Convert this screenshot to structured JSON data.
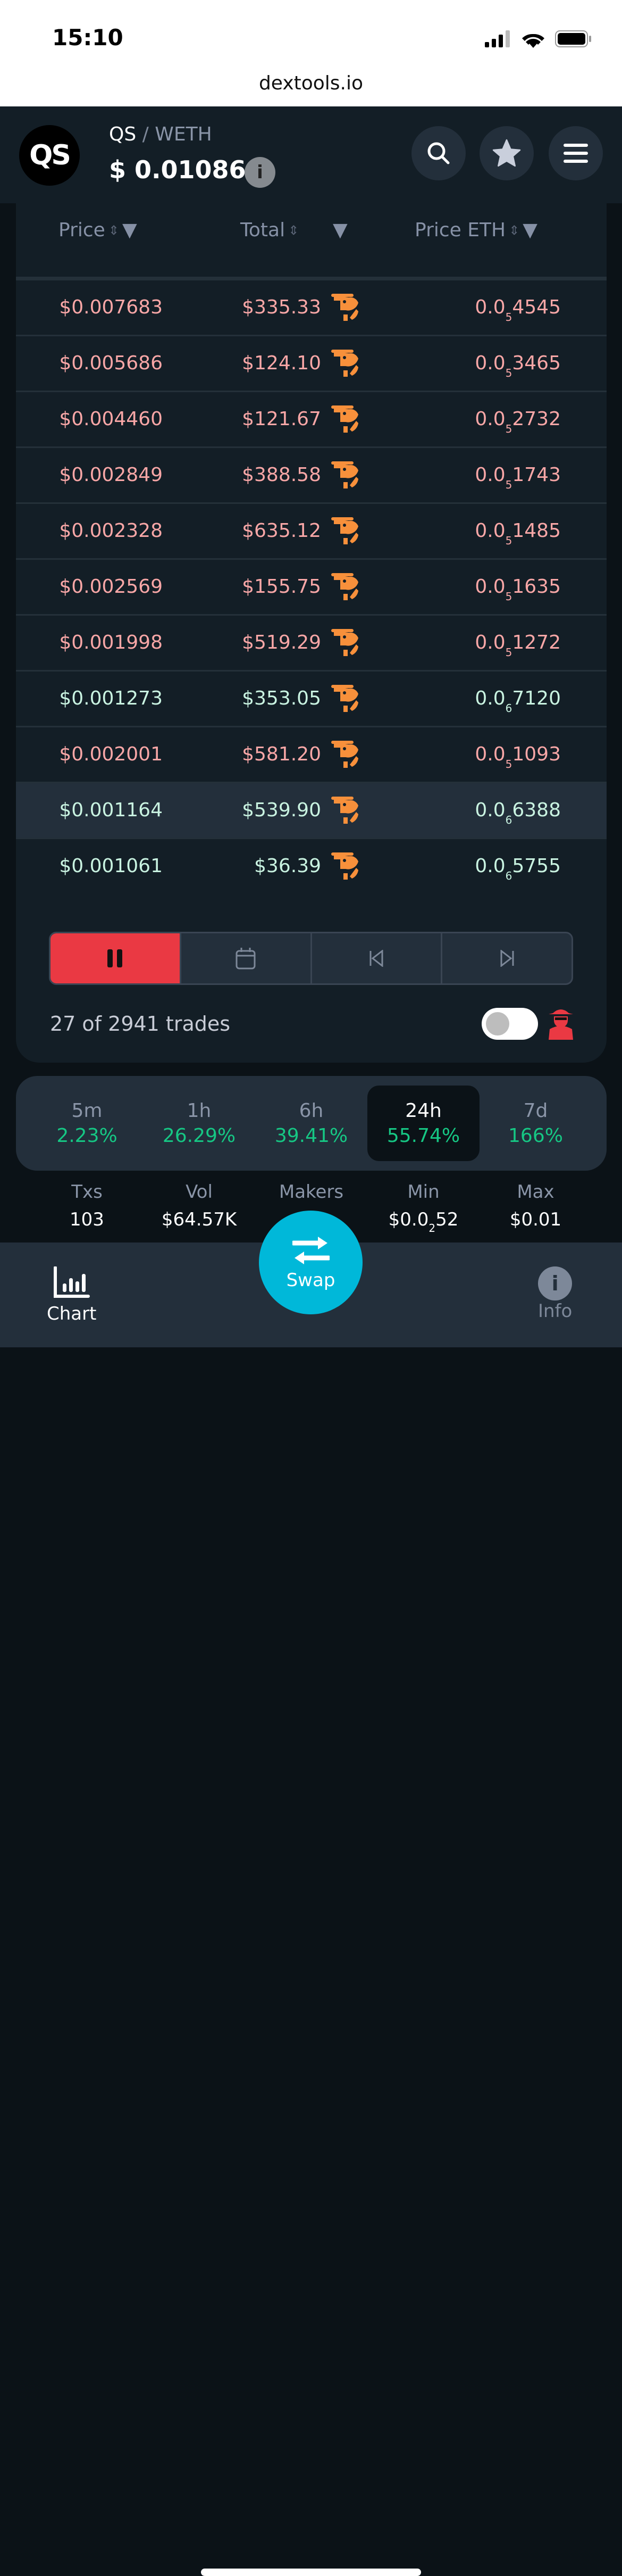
{
  "status_bar": {
    "time": "15:10",
    "url": "dextools.io"
  },
  "header": {
    "logo_text": "QS",
    "base": "QS",
    "separator": "/",
    "quote": "WETH",
    "price": "$ 0.01086",
    "info_label": "i"
  },
  "table": {
    "columns": {
      "price": "Price",
      "total": "Total",
      "price_eth": "Price ETH"
    },
    "rows": [
      {
        "price": "$0.007683",
        "total": "$335.33",
        "eth": {
          "pre": "0.0",
          "sub": "5",
          "digits": "4545"
        },
        "side": "sell",
        "maker": "shrimp"
      },
      {
        "price": "$0.005686",
        "total": "$124.10",
        "eth": {
          "pre": "0.0",
          "sub": "5",
          "digits": "3465"
        },
        "side": "sell",
        "maker": "shrimp"
      },
      {
        "price": "$0.004460",
        "total": "$121.67",
        "eth": {
          "pre": "0.0",
          "sub": "5",
          "digits": "2732"
        },
        "side": "sell",
        "maker": "shrimp"
      },
      {
        "price": "$0.002849",
        "total": "$388.58",
        "eth": {
          "pre": "0.0",
          "sub": "5",
          "digits": "1743"
        },
        "side": "sell",
        "maker": "shrimp"
      },
      {
        "price": "$0.002328",
        "total": "$635.12",
        "eth": {
          "pre": "0.0",
          "sub": "5",
          "digits": "1485"
        },
        "side": "sell",
        "maker": "shrimp"
      },
      {
        "price": "$0.002569",
        "total": "$155.75",
        "eth": {
          "pre": "0.0",
          "sub": "5",
          "digits": "1635"
        },
        "side": "sell",
        "maker": "shrimp"
      },
      {
        "price": "$0.001998",
        "total": "$519.29",
        "eth": {
          "pre": "0.0",
          "sub": "5",
          "digits": "1272"
        },
        "side": "sell",
        "maker": "shrimp"
      },
      {
        "price": "$0.001273",
        "total": "$353.05",
        "eth": {
          "pre": "0.0",
          "sub": "6",
          "digits": "7120"
        },
        "side": "buy",
        "maker": "shrimp"
      },
      {
        "price": "$0.002001",
        "total": "$581.20",
        "eth": {
          "pre": "0.0",
          "sub": "5",
          "digits": "1093"
        },
        "side": "sell",
        "maker": "shrimp"
      },
      {
        "price": "$0.001164",
        "total": "$539.90",
        "eth": {
          "pre": "0.0",
          "sub": "6",
          "digits": "6388"
        },
        "side": "buy",
        "maker": "shrimp",
        "highlighted": true
      },
      {
        "price": "$0.001061",
        "total": "$36.39",
        "eth": {
          "pre": "0.0",
          "sub": "6",
          "digits": "5755"
        },
        "side": "buy",
        "maker": "shrimp"
      }
    ]
  },
  "colors": {
    "sell": "#f9a7a7",
    "buy": "#c9f3e1",
    "accent": "#00b8d9",
    "pause": "#ea3943",
    "positive": "#16c784",
    "shrimp": "#f7903b"
  },
  "trades_summary": "27 of 2941 trades",
  "timeframes": [
    {
      "label": "5m",
      "change": "2.23%"
    },
    {
      "label": "1h",
      "change": "26.29%"
    },
    {
      "label": "6h",
      "change": "39.41%"
    },
    {
      "label": "24h",
      "change": "55.74%",
      "active": true
    },
    {
      "label": "7d",
      "change": "166%"
    }
  ],
  "stats": [
    {
      "label": "Txs",
      "value": "103"
    },
    {
      "label": "Vol",
      "value": "$64.57K"
    },
    {
      "label": "Makers",
      "value": ""
    },
    {
      "label": "Min",
      "value": {
        "pre": "$0.0",
        "sub": "2",
        "digits": "52"
      }
    },
    {
      "label": "Max",
      "value": "$0.01"
    }
  ],
  "nav": {
    "chart": "Chart",
    "swap": "Swap",
    "info": "Info"
  }
}
